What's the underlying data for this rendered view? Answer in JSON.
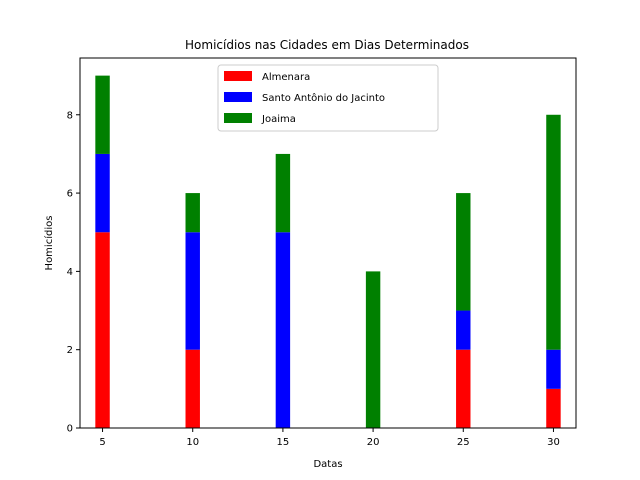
{
  "chart_data": {
    "type": "bar",
    "stacked": true,
    "title": "Homicídios nas Cidades em Dias Determinados",
    "xlabel": "Datas",
    "ylabel": "Homicídios",
    "x": [
      5,
      10,
      15,
      20,
      25,
      30
    ],
    "xticks": [
      5,
      10,
      15,
      20,
      25,
      30
    ],
    "yticks": [
      0,
      2,
      4,
      6,
      8
    ],
    "xlim": [
      3.75,
      31.25
    ],
    "ylim": [
      0,
      9.45
    ],
    "series": [
      {
        "name": "Almenara",
        "color": "#ff0000",
        "values": [
          5,
          2,
          0,
          0,
          2,
          1
        ]
      },
      {
        "name": "Santo Antônio do Jacinto",
        "color": "#0000ff",
        "values": [
          2,
          3,
          5,
          0,
          1,
          1
        ]
      },
      {
        "name": "Joaima",
        "color": "#008000",
        "values": [
          2,
          1,
          2,
          4,
          3,
          6
        ]
      }
    ],
    "legend_position": "upper-center",
    "grid": false
  }
}
